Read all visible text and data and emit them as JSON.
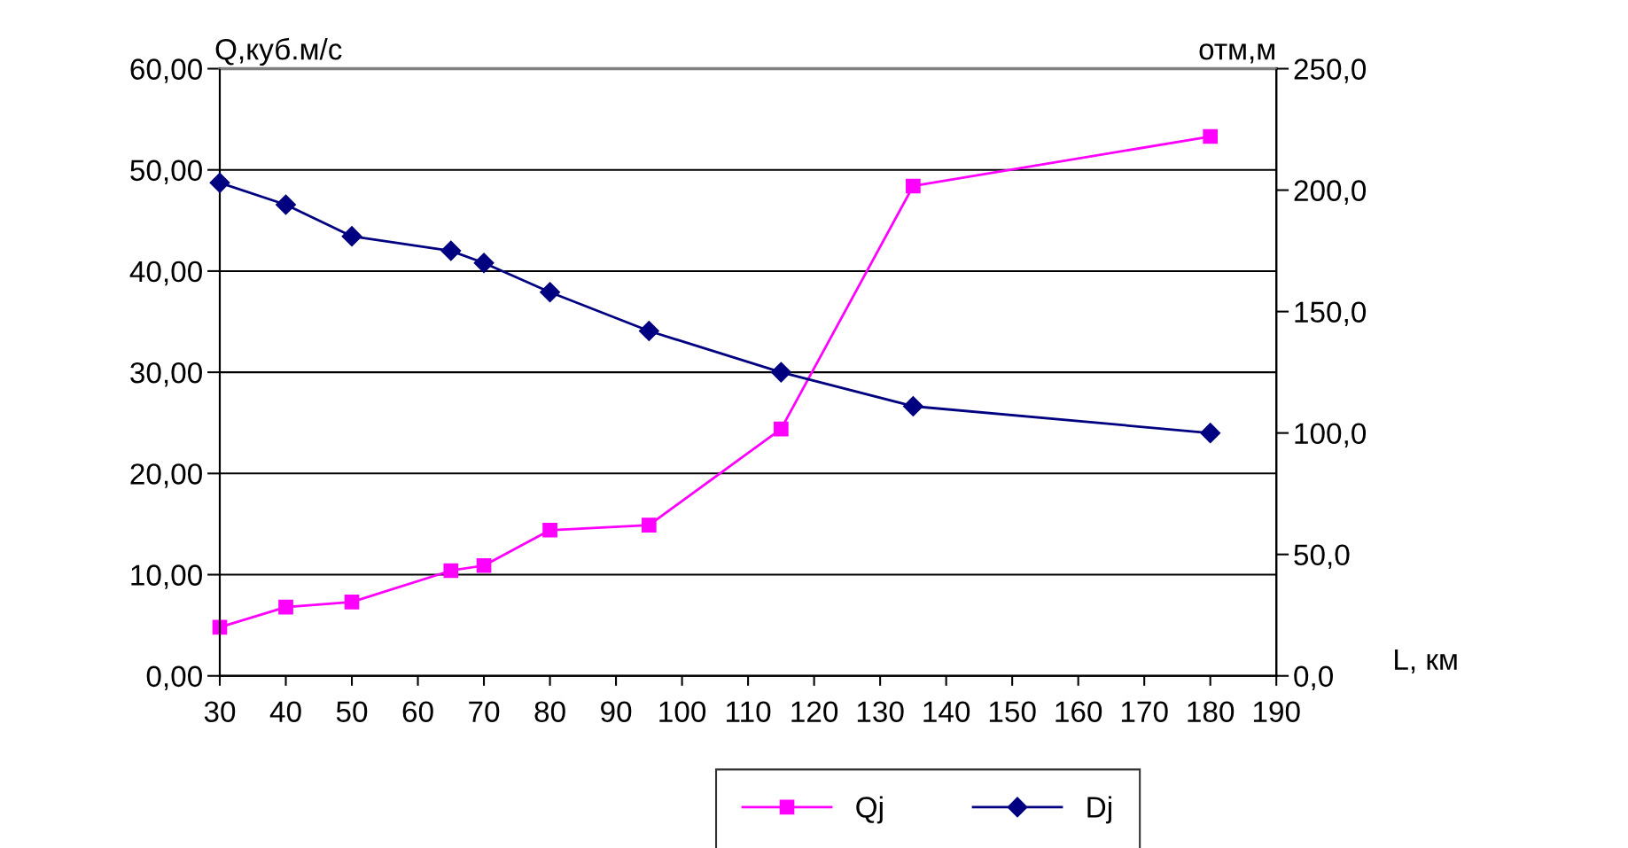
{
  "chart_data": {
    "type": "line",
    "ylabel": "Q,куб.м/с",
    "y2label": "отм,м",
    "xlabel": "L, км",
    "x": [
      30,
      40,
      50,
      65,
      70,
      80,
      95,
      115,
      135,
      180
    ],
    "series": [
      {
        "name": "Qj",
        "color": "#ff00ff",
        "marker": "square",
        "values": [
          4.8,
          6.8,
          7.3,
          10.4,
          10.9,
          14.4,
          14.9,
          24.4,
          48.4,
          53.3
        ]
      },
      {
        "name": "Dj",
        "color": "#000080",
        "marker": "diamond",
        "axis": "y2",
        "values": [
          203,
          194,
          181,
          175,
          170,
          158,
          142,
          125,
          111,
          100
        ]
      }
    ],
    "xlim": [
      30,
      190
    ],
    "xticks": [
      30,
      40,
      50,
      60,
      70,
      80,
      90,
      100,
      110,
      120,
      130,
      140,
      150,
      160,
      170,
      180,
      190
    ],
    "ylim": [
      0,
      60
    ],
    "yticks": [
      {
        "value": 0,
        "label": "0,00"
      },
      {
        "value": 10,
        "label": "10,00"
      },
      {
        "value": 20,
        "label": "20,00"
      },
      {
        "value": 30,
        "label": "30,00"
      },
      {
        "value": 40,
        "label": "40,00"
      },
      {
        "value": 50,
        "label": "50,00"
      },
      {
        "value": 60,
        "label": "60,00"
      }
    ],
    "y2lim": [
      0,
      250
    ],
    "y2ticks": [
      {
        "value": 0,
        "label": "0,0"
      },
      {
        "value": 50,
        "label": "50,0"
      },
      {
        "value": 100,
        "label": "100,0"
      },
      {
        "value": 150,
        "label": "150,0"
      },
      {
        "value": 200,
        "label": "200,0"
      },
      {
        "value": 250,
        "label": "250,0"
      }
    ],
    "grid": "y",
    "legend": "bottom",
    "line_style": "solid"
  }
}
